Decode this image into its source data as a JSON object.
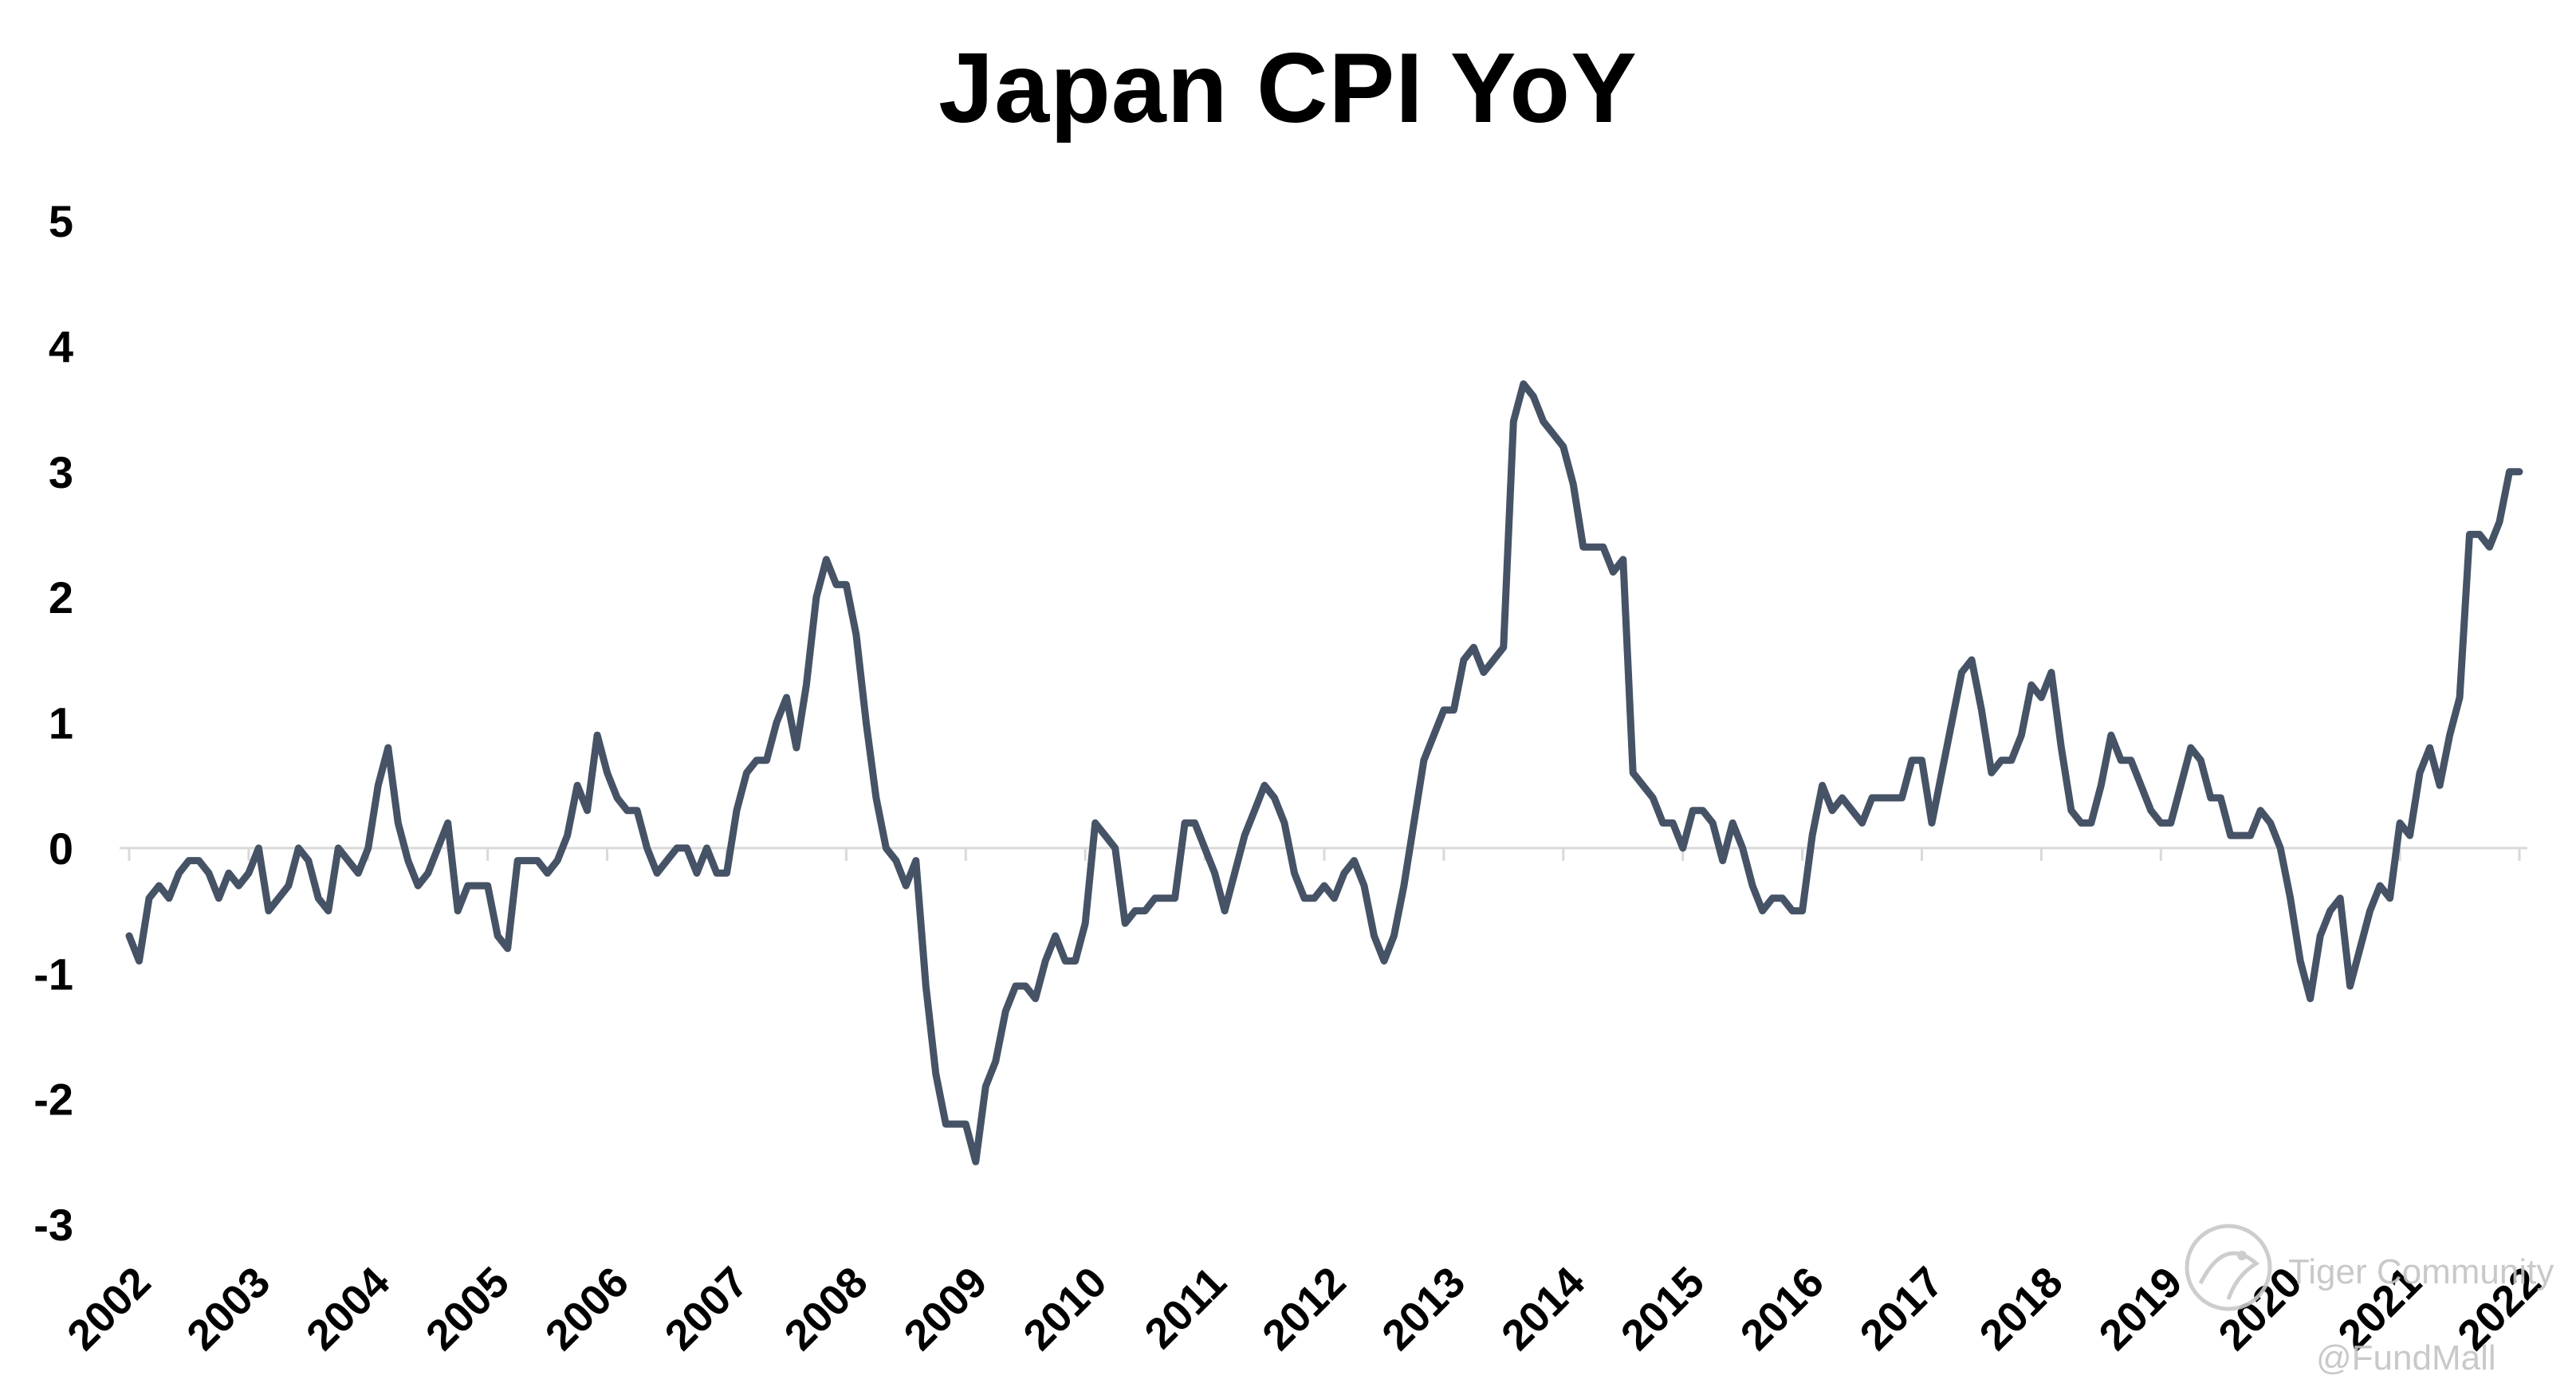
{
  "chart_data": {
    "type": "line",
    "title": "Japan CPI YoY",
    "xlabel": "",
    "ylabel": "",
    "ylim": [
      -3,
      5
    ],
    "yticks": [
      "5",
      "4",
      "3",
      "2",
      "1",
      "0",
      "-1",
      "-2",
      "-3"
    ],
    "xticks": [
      "2002",
      "2003",
      "2004",
      "2005",
      "2006",
      "2007",
      "2008",
      "2009",
      "2010",
      "2011",
      "2012",
      "2013",
      "2014",
      "2015",
      "2016",
      "2017",
      "2018",
      "2019",
      "2020",
      "2021",
      "2022"
    ],
    "x_start": "2002-01",
    "frequency": "monthly",
    "grid": false,
    "legend": "none",
    "color": "#465366",
    "series": [
      {
        "values": [
          -0.7,
          -0.9,
          -0.4,
          -0.3,
          -0.4,
          -0.2,
          -0.1,
          -0.1,
          -0.2,
          -0.4,
          -0.2,
          -0.3,
          -0.2,
          0.0,
          -0.5,
          -0.4,
          -0.3,
          0.0,
          -0.1,
          -0.4,
          -0.5,
          0.0,
          -0.1,
          -0.2,
          0.0,
          0.5,
          0.8,
          0.2,
          -0.1,
          -0.3,
          -0.2,
          0.0,
          0.2,
          -0.5,
          -0.3,
          -0.3,
          -0.3,
          -0.7,
          -0.8,
          -0.1,
          -0.1,
          -0.1,
          -0.2,
          -0.1,
          0.1,
          0.5,
          0.3,
          0.9,
          0.6,
          0.4,
          0.3,
          0.3,
          0.0,
          -0.2,
          -0.1,
          0.0,
          0.0,
          -0.2,
          0.0,
          -0.2,
          -0.2,
          0.3,
          0.6,
          0.7,
          0.7,
          1.0,
          1.2,
          0.8,
          1.3,
          2.0,
          2.3,
          2.1,
          2.1,
          1.7,
          1.0,
          0.4,
          0.0,
          -0.1,
          -0.3,
          -0.1,
          -1.1,
          -1.8,
          -2.2,
          -2.2,
          -2.2,
          -2.5,
          -1.9,
          -1.7,
          -1.3,
          -1.1,
          -1.1,
          -1.2,
          -0.9,
          -0.7,
          -0.9,
          -0.9,
          -0.6,
          0.2,
          0.1,
          0.0,
          -0.6,
          -0.5,
          -0.5,
          -0.4,
          -0.4,
          -0.4,
          0.2,
          0.2,
          0.0,
          -0.2,
          -0.5,
          -0.2,
          0.1,
          0.3,
          0.5,
          0.4,
          0.2,
          -0.2,
          -0.4,
          -0.4,
          -0.3,
          -0.4,
          -0.2,
          -0.1,
          -0.3,
          -0.7,
          -0.9,
          -0.7,
          -0.3,
          0.2,
          0.7,
          0.9,
          1.1,
          1.1,
          1.5,
          1.6,
          1.4,
          1.5,
          1.6,
          3.4,
          3.7,
          3.6,
          3.4,
          3.3,
          3.2,
          2.9,
          2.4,
          2.4,
          2.4,
          2.2,
          2.3,
          0.6,
          0.5,
          0.4,
          0.2,
          0.2,
          0.0,
          0.3,
          0.3,
          0.2,
          -0.1,
          0.2,
          0.0,
          -0.3,
          -0.5,
          -0.4,
          -0.4,
          -0.5,
          -0.5,
          0.1,
          0.5,
          0.3,
          0.4,
          0.3,
          0.2,
          0.4,
          0.4,
          0.4,
          0.4,
          0.7,
          0.7,
          0.2,
          0.6,
          1.0,
          1.4,
          1.5,
          1.1,
          0.6,
          0.7,
          0.7,
          0.9,
          1.3,
          1.2,
          1.4,
          0.8,
          0.3,
          0.2,
          0.2,
          0.5,
          0.9,
          0.7,
          0.7,
          0.5,
          0.3,
          0.2,
          0.2,
          0.5,
          0.8,
          0.7,
          0.4,
          0.4,
          0.1,
          0.1,
          0.1,
          0.3,
          0.2,
          0.0,
          -0.4,
          -0.9,
          -1.2,
          -0.7,
          -0.5,
          -0.4,
          -1.1,
          -0.8,
          -0.5,
          -0.3,
          -0.4,
          0.2,
          0.1,
          0.6,
          0.8,
          0.5,
          0.9,
          1.2,
          2.5,
          2.5,
          2.4,
          2.6,
          3.0,
          3.0
        ]
      }
    ]
  },
  "watermark": {
    "line1": "Tiger Community",
    "line2": "@FundMall",
    "icon": "tiger-logo-icon"
  }
}
